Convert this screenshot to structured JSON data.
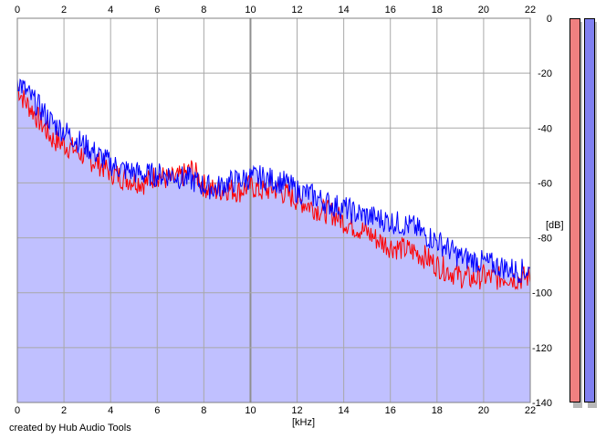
{
  "credit": "created by Hub Audio Tools",
  "colors": {
    "background": "#ffffff",
    "fill": "#c0c0ff",
    "grid": "#a8a8a8",
    "gridMajor": "#909090",
    "left_channel": "#ff0000",
    "right_channel": "#0000ff",
    "meter_left": "#f08080",
    "meter_right": "#8080f0"
  },
  "chart_data": {
    "type": "line",
    "title": "",
    "xlabel": "[kHz]",
    "ylabel": "[dB]",
    "xlim": [
      0,
      22
    ],
    "ylim": [
      -140,
      0
    ],
    "x_ticks": [
      "0",
      "2",
      "4",
      "6",
      "8",
      "10",
      "12",
      "14",
      "16",
      "18",
      "20",
      "22"
    ],
    "y_ticks": [
      "0",
      "-20",
      "-40",
      "-60",
      "-80",
      "-100",
      "-120",
      "-140"
    ],
    "grid": true,
    "legend": "none",
    "series": [
      {
        "color": "#ff0000",
        "x": [
          0,
          0.3,
          0.6,
          1,
          1.5,
          2,
          2.5,
          3,
          3.5,
          4,
          4.5,
          5,
          5.5,
          6,
          6.5,
          7,
          7.5,
          8,
          8.5,
          9,
          9.5,
          10,
          10.5,
          11,
          11.5,
          12,
          12.5,
          13,
          13.5,
          14,
          14.5,
          15,
          15.5,
          16,
          16.5,
          17,
          17.5,
          18,
          18.5,
          19,
          19.5,
          20,
          20.5,
          21,
          21.5,
          22
        ],
        "y": [
          -25,
          -30,
          -33,
          -38,
          -44,
          -46,
          -48,
          -51,
          -53,
          -56,
          -58,
          -59,
          -60,
          -57,
          -59,
          -58,
          -55,
          -61,
          -63,
          -62,
          -63,
          -61,
          -63,
          -62,
          -64,
          -66,
          -68,
          -70,
          -71,
          -74,
          -76,
          -78,
          -81,
          -83,
          -84,
          -85,
          -87,
          -90,
          -92,
          -94,
          -95,
          -94,
          -95,
          -94,
          -95,
          -94
        ]
      },
      {
        "color": "#0000ff",
        "x": [
          0,
          0.3,
          0.6,
          1,
          1.5,
          2,
          2.5,
          3,
          3.5,
          4,
          4.5,
          5,
          5.5,
          6,
          6.5,
          7,
          7.5,
          8,
          8.5,
          9,
          9.5,
          10,
          10.5,
          11,
          11.5,
          12,
          12.5,
          13,
          13.5,
          14,
          14.5,
          15,
          15.5,
          16,
          16.5,
          17,
          17.5,
          18,
          18.5,
          19,
          19.5,
          20,
          20.5,
          21,
          21.5,
          22
        ],
        "y": [
          -22,
          -26,
          -29,
          -33,
          -38,
          -41,
          -44,
          -47,
          -50,
          -53,
          -55,
          -56,
          -57,
          -57,
          -57,
          -58,
          -59,
          -61,
          -62,
          -60,
          -59,
          -58,
          -58,
          -59,
          -60,
          -63,
          -64,
          -66,
          -68,
          -69,
          -71,
          -72,
          -73,
          -74,
          -75,
          -76,
          -79,
          -81,
          -84,
          -87,
          -88,
          -89,
          -90,
          -91,
          -92,
          -92
        ]
      }
    ],
    "meters": {
      "left": -140,
      "right": -140
    }
  }
}
